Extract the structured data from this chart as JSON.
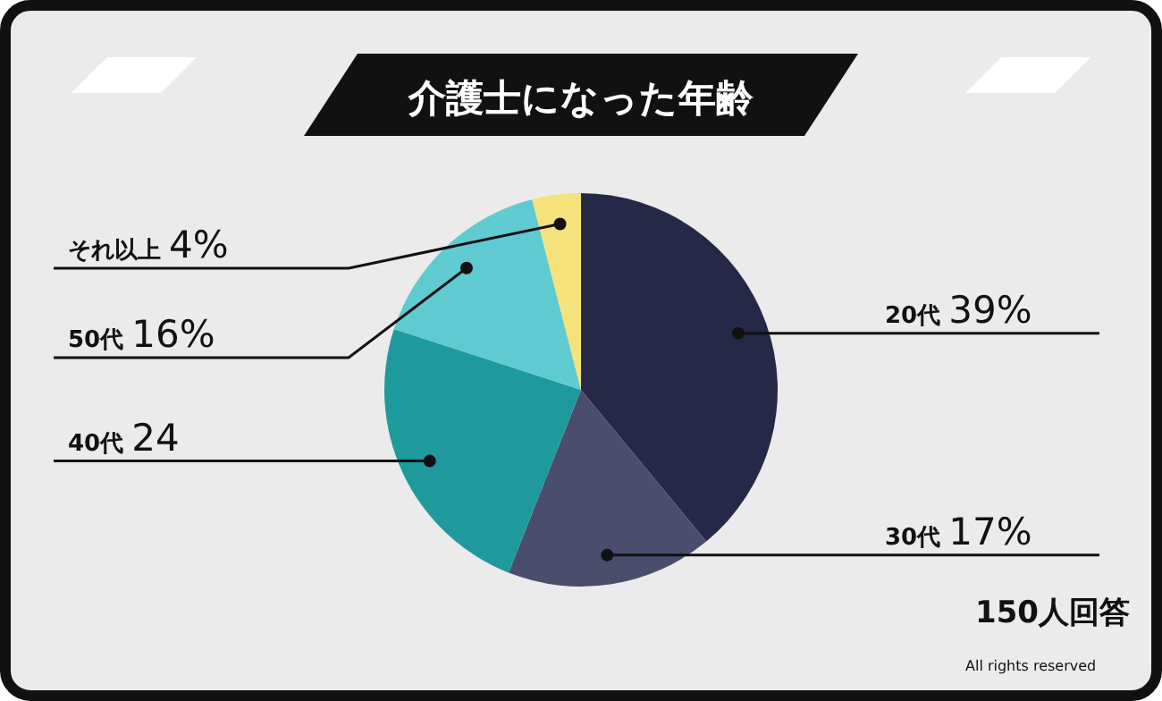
{
  "chart_data": {
    "type": "pie",
    "title": "介護士になった年齢",
    "categories": [
      "20代",
      "30代",
      "40代",
      "50代",
      "それ以上"
    ],
    "values": [
      39,
      17,
      24,
      16,
      4
    ],
    "value_labels": [
      "39%",
      "17%",
      "24",
      "16%",
      "4%"
    ],
    "colors": [
      "#252947",
      "#4b4d6d",
      "#1e9a9c",
      "#5fcbd0",
      "#f6e27a"
    ],
    "annotations": [
      "150人回答",
      "All rights reserved"
    ]
  }
}
